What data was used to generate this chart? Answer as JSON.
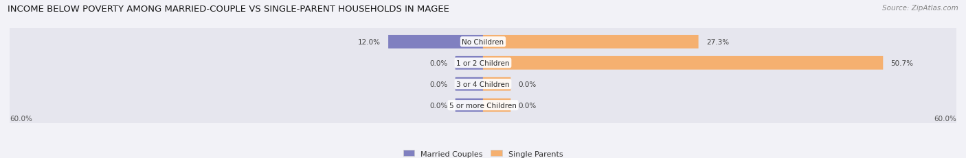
{
  "title": "INCOME BELOW POVERTY AMONG MARRIED-COUPLE VS SINGLE-PARENT HOUSEHOLDS IN MAGEE",
  "source": "Source: ZipAtlas.com",
  "categories": [
    "No Children",
    "1 or 2 Children",
    "3 or 4 Children",
    "5 or more Children"
  ],
  "married_values": [
    12.0,
    0.0,
    0.0,
    0.0
  ],
  "single_values": [
    27.3,
    50.7,
    0.0,
    0.0
  ],
  "axis_limit": 60.0,
  "married_color": "#8080c0",
  "single_color": "#f5b070",
  "married_label": "Married Couples",
  "single_label": "Single Parents",
  "bg_color": "#f2f2f7",
  "bar_bg_color": "#e2e2ea",
  "row_bg_color": "#e6e6ee",
  "title_fontsize": 9.5,
  "label_fontsize": 7.5,
  "source_fontsize": 7.5,
  "axis_label_fontsize": 7.5,
  "legend_fontsize": 8.0,
  "zero_stub": 3.5
}
